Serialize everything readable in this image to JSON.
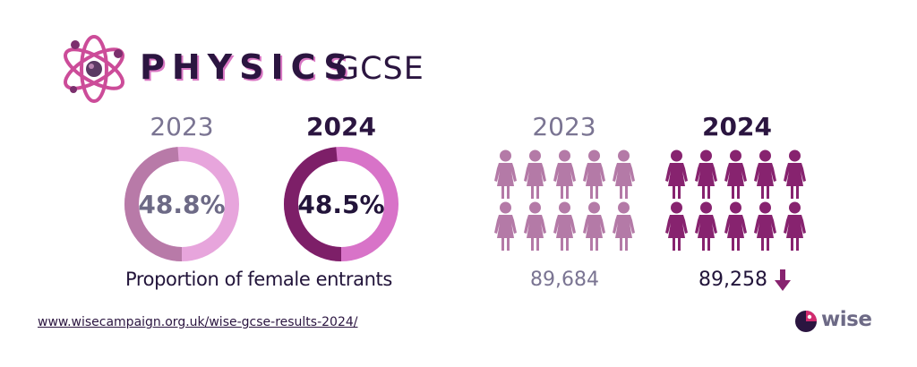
{
  "header": {
    "title_main": "PHYSICS",
    "title_sub": "GCSE"
  },
  "percent": {
    "year_2023": "2023",
    "year_2024": "2024",
    "value_2023_label": "48.8%",
    "value_2024_label": "48.5%",
    "value_2023": 48.8,
    "value_2024": 48.5,
    "caption": "Proportion of female entrants"
  },
  "entrants": {
    "year_2023": "2023",
    "year_2024": "2024",
    "count_2023": "89,684",
    "count_2024": "89,258",
    "trend": "down"
  },
  "footer": {
    "url": "www.wisecampaign.org.uk/wise-gcse-results-2024/",
    "brand": "wise"
  },
  "colors": {
    "dark": "#22143a",
    "muted": "#7a7492",
    "pink_2023_a": "#b87aa8",
    "pink_2023_b": "#e7a5dc",
    "magenta_2024_a": "#7d1f68",
    "magenta_2024_b": "#d873c8",
    "person_2023": "#b47aa7",
    "person_2024": "#87236f"
  },
  "icons": {
    "logo": "atom-icon",
    "person": "person-icon",
    "trend": "arrow-down-icon",
    "brand": "wise-logo-icon"
  }
}
